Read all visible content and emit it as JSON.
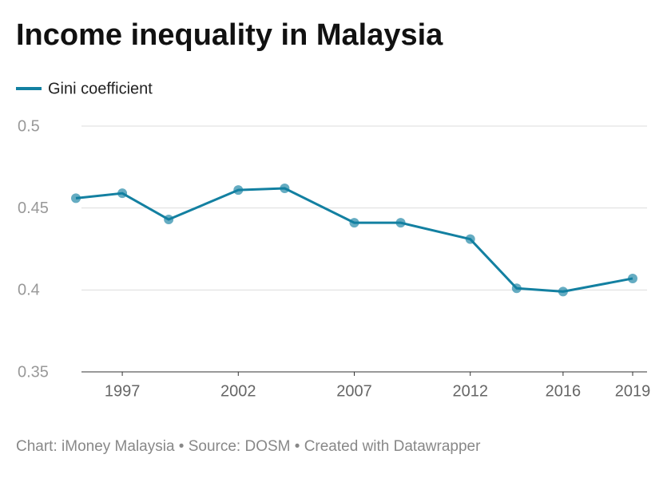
{
  "chart_data": {
    "type": "line",
    "title": "Income inequality in Malaysia",
    "x": [
      1995,
      1997,
      1999,
      2002,
      2004,
      2007,
      2009,
      2012,
      2014,
      2016,
      2019
    ],
    "series": [
      {
        "name": "Gini coefficient",
        "color": "#1380a1",
        "values": [
          0.456,
          0.459,
          0.443,
          0.461,
          0.462,
          0.441,
          0.441,
          0.431,
          0.401,
          0.399,
          0.407
        ]
      }
    ],
    "xlim": [
      1995,
      2019
    ],
    "xticks": [
      1997,
      2002,
      2007,
      2012,
      2016,
      2019
    ],
    "ylim": [
      0.35,
      0.5
    ],
    "yticks": [
      0.35,
      0.4,
      0.45,
      0.5
    ],
    "grid": true,
    "footer": "Chart: iMoney Malaysia • Source: DOSM • Created with Datawrapper"
  }
}
